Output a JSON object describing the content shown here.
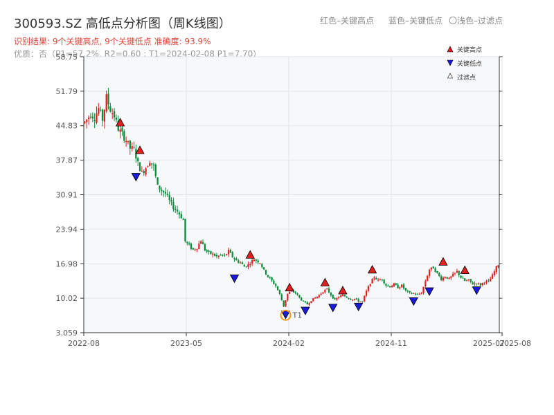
{
  "header": {
    "title": "300593.SZ 高低点分析图（周K线图）",
    "legend_high": "红色–关键高点",
    "legend_low": "蓝色–关键低点",
    "legend_filtered": "〇浅色–过滤点",
    "result_line": "识别结果: 9个关键高点, 9个关键低点  准确度: 93.9%",
    "quality_line": "优质：否（P1=57.2%, R2=0.60 ; T1=2024-02-08 P1=7.70）"
  },
  "colors": {
    "up": "#e02020",
    "down": "#0a8a3a",
    "high_marker": "#e02020",
    "low_marker": "#1a1ad8",
    "t1_marker": "#f0961e",
    "plot_bg": "#f7f8fa",
    "grid": "#e2e5ea",
    "axis": "#333333"
  },
  "chart_data": {
    "type": "candlestick",
    "ylim": [
      3.059,
      58.75
    ],
    "yticks": [
      "3.059",
      "10.02",
      "16.98",
      "23.94",
      "30.91",
      "37.87",
      "44.83",
      "51.79",
      "58.75"
    ],
    "xticks": [
      "2022-08",
      "2023-05",
      "2024-02",
      "2024-11",
      "2025-07",
      "2025-08"
    ],
    "grid": true,
    "legend_position": "top-right",
    "legend": [
      {
        "label": "关键高点",
        "marker": "triangle-up"
      },
      {
        "label": "关键低点",
        "marker": "triangle-down"
      },
      {
        "label": "过滤点",
        "marker": "triangle-up-hollow"
      }
    ],
    "segments": [
      [
        0,
        45.5
      ],
      [
        3,
        47.2
      ],
      [
        5,
        46.5
      ],
      [
        7,
        48.3
      ],
      [
        9,
        46.1
      ],
      [
        11,
        50.5
      ],
      [
        13,
        48.1
      ],
      [
        15,
        46.8
      ],
      [
        17,
        44.2
      ],
      [
        19,
        43.1
      ],
      [
        21,
        41.9
      ],
      [
        23,
        40.3
      ],
      [
        25,
        40.1
      ],
      [
        27,
        37.2
      ],
      [
        29,
        35.3
      ],
      [
        31,
        36.4
      ],
      [
        33,
        37.8
      ],
      [
        35,
        36.5
      ],
      [
        37,
        32.5
      ],
      [
        39,
        31.8
      ],
      [
        41,
        31.1
      ],
      [
        43,
        29.6
      ],
      [
        45,
        28.4
      ],
      [
        47,
        27.6
      ],
      [
        49,
        26.5
      ],
      [
        50,
        25.8
      ],
      [
        51,
        21.5
      ],
      [
        53,
        20.6
      ],
      [
        55,
        19.8
      ],
      [
        57,
        20.3
      ],
      [
        59,
        21.7
      ],
      [
        61,
        19.8
      ],
      [
        63,
        19.1
      ],
      [
        65,
        18.9
      ],
      [
        67,
        18.4
      ],
      [
        69,
        18.7
      ],
      [
        71,
        18.5
      ],
      [
        73,
        19.5
      ],
      [
        75,
        18.4
      ],
      [
        77,
        17.6
      ],
      [
        79,
        17.2
      ],
      [
        81,
        16.4
      ],
      [
        83,
        16.8
      ],
      [
        86,
        17.9
      ],
      [
        89,
        17.2
      ],
      [
        91,
        15.6
      ],
      [
        93,
        14.4
      ],
      [
        95,
        13.5
      ],
      [
        97,
        12.5
      ],
      [
        99,
        10.8
      ],
      [
        101,
        8.4
      ],
      [
        103,
        10.9
      ],
      [
        105,
        11.5
      ],
      [
        107,
        11.1
      ],
      [
        109,
        10.1
      ],
      [
        111,
        9.3
      ],
      [
        113,
        8.8
      ],
      [
        115,
        9.6
      ],
      [
        117,
        10.1
      ],
      [
        119,
        10.6
      ],
      [
        121,
        11.4
      ],
      [
        123,
        11.8
      ],
      [
        125,
        10.7
      ],
      [
        127,
        9.6
      ],
      [
        129,
        10.3
      ],
      [
        131,
        10.6
      ],
      [
        133,
        10.2
      ],
      [
        135,
        9.8
      ],
      [
        137,
        9.9
      ],
      [
        139,
        9.4
      ],
      [
        141,
        9.3
      ],
      [
        143,
        11.4
      ],
      [
        145,
        13.1
      ],
      [
        147,
        14.3
      ],
      [
        149,
        13.6
      ],
      [
        151,
        13.9
      ],
      [
        153,
        12.6
      ],
      [
        155,
        12.4
      ],
      [
        157,
        12.8
      ],
      [
        159,
        12.2
      ],
      [
        161,
        12.6
      ],
      [
        163,
        11.5
      ],
      [
        165,
        11.0
      ],
      [
        167,
        11.0
      ],
      [
        169,
        10.7
      ],
      [
        171,
        11.1
      ],
      [
        173,
        13.5
      ],
      [
        175,
        15.8
      ],
      [
        177,
        16.2
      ],
      [
        179,
        15.0
      ],
      [
        181,
        13.9
      ],
      [
        183,
        14.4
      ],
      [
        185,
        13.9
      ],
      [
        187,
        14.7
      ],
      [
        189,
        15.4
      ],
      [
        191,
        14.2
      ],
      [
        193,
        13.5
      ],
      [
        195,
        13.6
      ],
      [
        197,
        12.9
      ],
      [
        199,
        13.1
      ],
      [
        201,
        12.7
      ],
      [
        203,
        13.4
      ],
      [
        205,
        13.3
      ],
      [
        207,
        14.6
      ],
      [
        209,
        16.2
      ],
      [
        210,
        16.8
      ]
    ],
    "key_highs": [
      {
        "i": 18,
        "label": "高点",
        "value": 44.5
      },
      {
        "i": 28,
        "label": "高点",
        "value": 38.9
      },
      {
        "i": 84,
        "label": "高点",
        "value": 17.8
      },
      {
        "i": 104,
        "label": "高点",
        "value": 11.2
      },
      {
        "i": 122,
        "label": "高点",
        "value": 12.2
      },
      {
        "i": 131,
        "label": "高点",
        "value": 10.6
      },
      {
        "i": 146,
        "label": "高点",
        "value": 14.8
      },
      {
        "i": 182,
        "label": "高点",
        "value": 16.4
      },
      {
        "i": 193,
        "label": "高点",
        "value": 14.7
      }
    ],
    "key_lows": [
      {
        "i": 26,
        "label": "低点",
        "value": 35.5
      },
      {
        "i": 76,
        "label": "低点",
        "value": 15.0
      },
      {
        "i": 102,
        "label": "低点",
        "value": 7.7
      },
      {
        "i": 112,
        "label": "低点",
        "value": 8.5
      },
      {
        "i": 126,
        "label": "低点",
        "value": 9.1
      },
      {
        "i": 139,
        "label": "低点",
        "value": 9.3
      },
      {
        "i": 167,
        "label": "低点",
        "value": 10.4
      },
      {
        "i": 175,
        "label": "低点",
        "value": 12.4
      },
      {
        "i": 199,
        "label": "低点",
        "value": 12.6
      }
    ],
    "t1": {
      "i": 102,
      "label": "T1",
      "date": "2024-02-08",
      "value": 7.7
    }
  }
}
